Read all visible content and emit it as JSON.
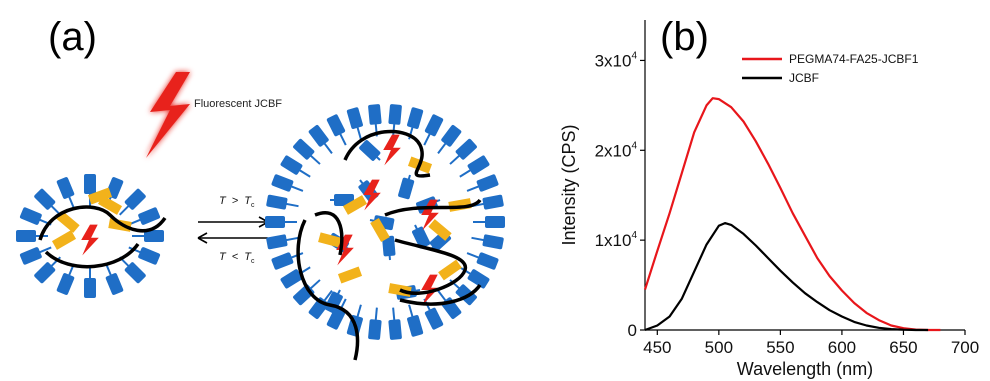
{
  "panels": {
    "a_label": "(a)",
    "b_label": "(b)"
  },
  "schematic": {
    "probe_label": "Fluorescent JCBF",
    "forward_condition": {
      "var": "T",
      "op": ">",
      "sub": "c"
    },
    "reverse_condition": {
      "var": "T",
      "op": "<",
      "sub": "c"
    },
    "colors": {
      "side_chain": "#1f6ec6",
      "hydrophobic": "#f2b21b",
      "probe": "#e8221b",
      "backbone": "#000000"
    }
  },
  "chart_data": {
    "type": "line",
    "title": "",
    "xlabel": "Wavelength (nm)",
    "ylabel": "Intensity (CPS)",
    "xlim": [
      440,
      700
    ],
    "ylim": [
      0,
      34500
    ],
    "xticks": [
      450,
      500,
      550,
      600,
      650,
      700
    ],
    "yticks": [
      {
        "value": 0,
        "mantissa": "0",
        "exp": ""
      },
      {
        "value": 10000,
        "mantissa": "1x10",
        "exp": "4"
      },
      {
        "value": 20000,
        "mantissa": "2x10",
        "exp": "4"
      },
      {
        "value": 30000,
        "mantissa": "3x10",
        "exp": "4"
      }
    ],
    "legend_position": "top-right",
    "series": [
      {
        "name": "PEGMA74-FA25-JCBF1",
        "color": "#e8161b",
        "x": [
          440,
          450,
          460,
          470,
          480,
          490,
          495,
          500,
          510,
          520,
          530,
          540,
          550,
          560,
          570,
          580,
          590,
          600,
          610,
          620,
          630,
          640,
          650,
          660,
          670,
          680
        ],
        "y": [
          4500,
          8800,
          13000,
          17500,
          22000,
          25000,
          25800,
          25700,
          24800,
          23200,
          21000,
          18500,
          15800,
          13000,
          10500,
          8000,
          6000,
          4400,
          3000,
          1900,
          1100,
          500,
          200,
          50,
          0,
          0
        ]
      },
      {
        "name": "JCBF",
        "color": "#000000",
        "x": [
          440,
          450,
          460,
          470,
          480,
          490,
          500,
          505,
          510,
          520,
          530,
          540,
          550,
          560,
          570,
          580,
          590,
          600,
          610,
          620,
          630,
          640,
          650,
          660,
          670
        ],
        "y": [
          0,
          500,
          1500,
          3500,
          6500,
          9500,
          11600,
          11900,
          11700,
          10700,
          9400,
          8000,
          6600,
          5300,
          4100,
          3100,
          2200,
          1500,
          900,
          500,
          250,
          100,
          30,
          0,
          0
        ]
      }
    ]
  }
}
